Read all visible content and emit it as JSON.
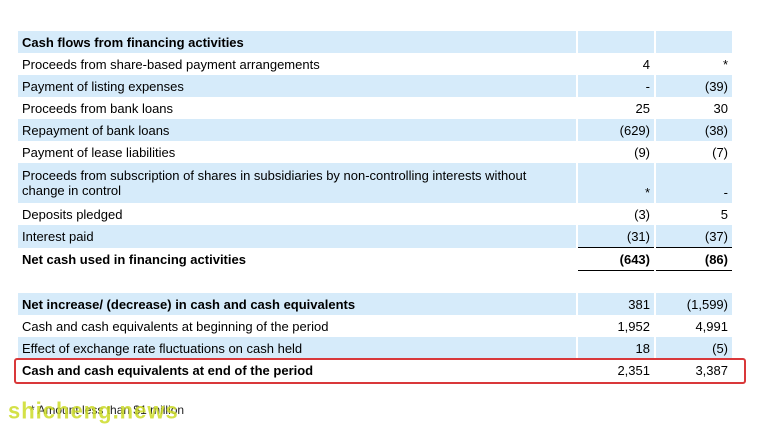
{
  "table": {
    "rows": [
      {
        "label": "Cash flows from financing activities",
        "v1": "",
        "v2": "",
        "style": "shade bold"
      },
      {
        "label": "Proceeds from share-based payment arrangements",
        "v1": "4",
        "v2": "*",
        "style": ""
      },
      {
        "label": "Payment of listing expenses",
        "v1": "-",
        "v2": "(39)",
        "style": "shade"
      },
      {
        "label": "Proceeds from bank loans",
        "v1": "25",
        "v2": "30",
        "style": ""
      },
      {
        "label": "Repayment of bank loans",
        "v1": "(629)",
        "v2": "(38)",
        "style": "shade"
      },
      {
        "label": "Payment of lease liabilities",
        "v1": "(9)",
        "v2": "(7)",
        "style": ""
      },
      {
        "label": "Proceeds from subscription of shares in subsidiaries by non-controlling interests without change in control",
        "v1": "*",
        "v2": "-",
        "style": "shade tall"
      },
      {
        "label": "Deposits pledged",
        "v1": "(3)",
        "v2": "5",
        "style": ""
      },
      {
        "label": "Interest paid",
        "v1": "(31)",
        "v2": "(37)",
        "style": "shade pre-total"
      },
      {
        "label": "Net cash used in financing activities",
        "v1": "(643)",
        "v2": "(86)",
        "style": "bold total"
      },
      {
        "label": "",
        "v1": "",
        "v2": "",
        "style": "spacer"
      },
      {
        "label": "Net increase/ (decrease) in cash and cash equivalents",
        "v1": "381",
        "v2": "(1,599)",
        "style": "shade bold-label"
      },
      {
        "label": "Cash and cash equivalents at beginning of the period",
        "v1": "1,952",
        "v2": "4,991",
        "style": ""
      },
      {
        "label": "Effect of exchange rate fluctuations on cash held",
        "v1": "18",
        "v2": "(5)",
        "style": "shade"
      },
      {
        "label": "Cash and cash equivalents at end of the period",
        "v1": "2,351",
        "v2": "3,387",
        "style": "bold-label"
      }
    ]
  },
  "footnote": "* Amount less than $1 million",
  "watermark": "shicheng.news",
  "colors": {
    "row_shade": "#d6ebfa",
    "highlight_border": "#d9383a"
  }
}
